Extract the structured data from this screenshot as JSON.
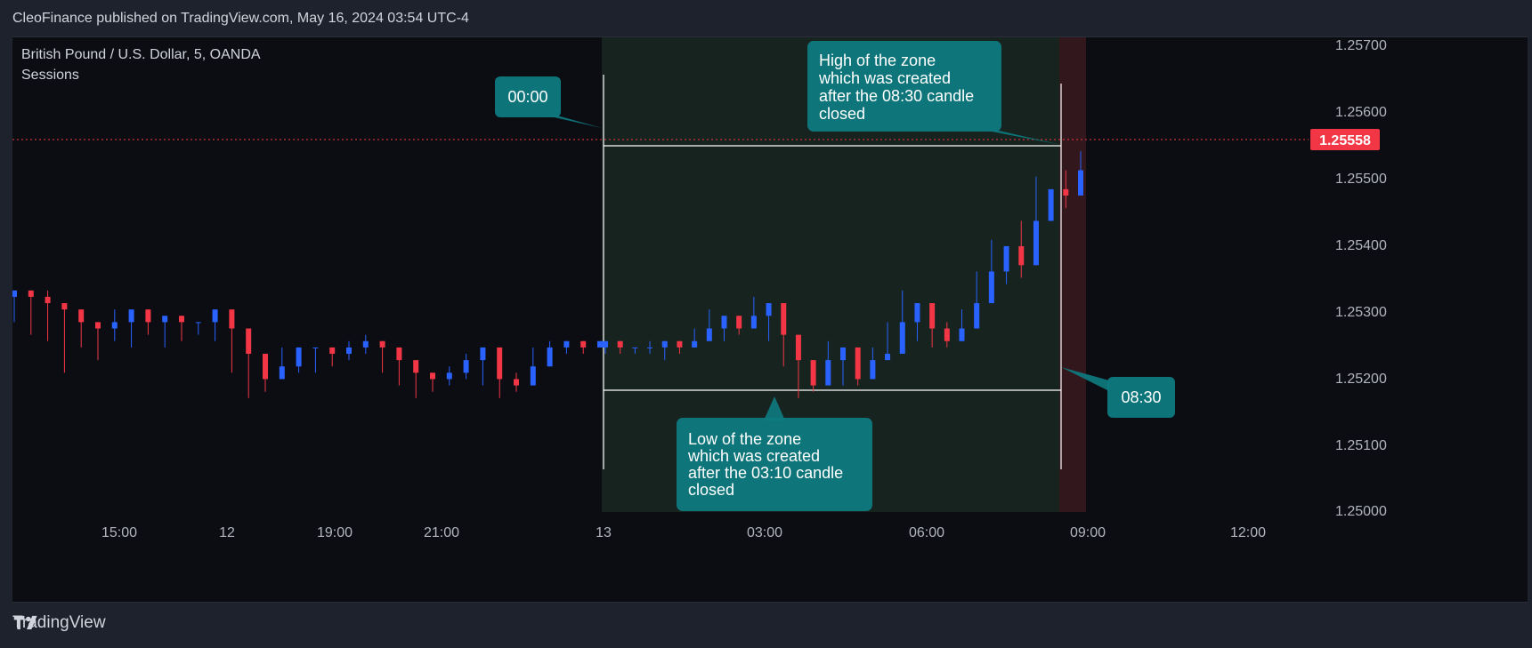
{
  "header": {
    "attribution": "CleoFinance published on TradingView.com, May 16, 2024 03:54 UTC-4"
  },
  "legend": {
    "symbol": "British Pound / U.S. Dollar, 5, OANDA",
    "indicator": "Sessions"
  },
  "footer": {
    "brand": "TradingView"
  },
  "colors": {
    "background": "#0b0d12",
    "bull": "#2962ff",
    "bear": "#f23645",
    "session_fill": "#1b2d24",
    "premarket_fill": "#3a1a1e",
    "callout": "#0e7a7f",
    "price_tag": "#f23645",
    "zone_lines": "#ffffff"
  },
  "chart_data": {
    "type": "candlestick",
    "symbol": "British Pound / U.S. Dollar",
    "interval": "5",
    "source": "OANDA",
    "ylim": [
      1.25,
      1.2575
    ],
    "y_ticks": [
      "1.25000",
      "1.25100",
      "1.25200",
      "1.25300",
      "1.25400",
      "1.25500",
      "1.25600",
      "1.25700"
    ],
    "x_ticks": [
      "15:00",
      "12",
      "19:00",
      "21:00",
      "13",
      "03:00",
      "06:00",
      "09:00",
      "12:00"
    ],
    "last_price": "1.25558",
    "zone": {
      "high": 1.25546,
      "low": 1.2518,
      "start_label": "00:00",
      "end_label": "08:30"
    },
    "series": [
      {
        "segment": 1,
        "points": [
          [
            1.2535,
            1.2535,
            1.253
          ],
          [
            1.2534,
            1.2534,
            1.2528
          ],
          [
            1.2533,
            1.2535,
            1.2527
          ],
          [
            1.2532,
            1.253,
            1.2522
          ],
          [
            1.253,
            1.2531,
            1.2526
          ],
          [
            1.2529,
            1.2528,
            1.2524
          ],
          [
            1.253,
            1.2532,
            1.2527
          ],
          [
            1.2532,
            1.2531,
            1.2526
          ],
          [
            1.253,
            1.2532,
            1.2528
          ],
          [
            1.2531,
            1.253,
            1.2526
          ],
          [
            1.253,
            1.2531,
            1.2527
          ],
          [
            1.253,
            1.253,
            1.2528
          ],
          [
            1.2532,
            1.2531,
            1.2527
          ],
          [
            1.2529,
            1.2528,
            1.2522
          ],
          [
            1.2525,
            1.2527,
            1.2518
          ],
          [
            1.2521,
            1.2523,
            1.2519
          ],
          [
            1.2523,
            1.2526,
            1.2522
          ],
          [
            1.2526,
            1.2525,
            1.2522
          ],
          [
            1.2526,
            1.2525,
            1.2522
          ],
          [
            1.2525,
            1.2526,
            1.2523
          ],
          [
            1.2526,
            1.2527,
            1.2524
          ],
          [
            1.2527,
            1.2528,
            1.2525
          ],
          [
            1.2526,
            1.2525,
            1.2522
          ],
          [
            1.2524,
            1.2524,
            1.252
          ],
          [
            1.2522,
            1.2521,
            1.2518
          ],
          [
            1.2521,
            1.2522,
            1.2519
          ],
          [
            1.2522,
            1.2523,
            1.252
          ],
          [
            1.2524,
            1.2525,
            1.2521
          ],
          [
            1.2526,
            1.2524,
            1.252
          ],
          [
            1.2521,
            1.252,
            1.2518
          ],
          [
            1.252,
            1.2522,
            1.2519
          ],
          [
            1.2523,
            1.2526,
            1.2522
          ],
          [
            1.2526,
            1.2527,
            1.2525
          ],
          [
            1.2527,
            1.2526,
            1.2525
          ],
          [
            1.2526,
            1.2527,
            1.2525
          ],
          [
            1.2527,
            1.2527,
            1.2526
          ]
        ]
      },
      {
        "segment": 2,
        "points": [
          [
            1.2527,
            1.2527,
            1.2525
          ],
          [
            1.2526,
            1.2527,
            1.2525
          ],
          [
            1.2526,
            1.2526,
            1.2525
          ],
          [
            1.2526,
            1.2527,
            1.2525
          ],
          [
            1.2527,
            1.2526,
            1.2524
          ],
          [
            1.2526,
            1.2526,
            1.2525
          ],
          [
            1.2527,
            1.2529,
            1.2526
          ],
          [
            1.2529,
            1.2532,
            1.2528
          ],
          [
            1.2531,
            1.253,
            1.2527
          ],
          [
            1.2529,
            1.2531,
            1.2528
          ],
          [
            1.2531,
            1.2534,
            1.253
          ],
          [
            1.2533,
            1.2532,
            1.2527
          ],
          [
            1.2528,
            1.2527,
            1.2523
          ],
          [
            1.2524,
            1.2525,
            1.2518
          ],
          [
            1.252,
            1.2524,
            1.2519
          ],
          [
            1.2524,
            1.2527,
            1.2523
          ],
          [
            1.2526,
            1.2525,
            1.252
          ],
          [
            1.2521,
            1.2524,
            1.252
          ],
          [
            1.2524,
            1.2526,
            1.2523
          ],
          [
            1.2525,
            1.253,
            1.2525
          ],
          [
            1.253,
            1.2535,
            1.2529
          ],
          [
            1.2533,
            1.2531,
            1.2527
          ],
          [
            1.2529,
            1.2528,
            1.2526
          ],
          [
            1.2527,
            1.253,
            1.2526
          ],
          [
            1.2529,
            1.2532,
            1.2528
          ],
          [
            1.2533,
            1.2538,
            1.2532
          ],
          [
            1.2538,
            1.2543,
            1.2537
          ],
          [
            1.2542,
            1.2541,
            1.2536
          ],
          [
            1.2539,
            1.2546,
            1.2537
          ],
          [
            1.2546,
            1.2553,
            1.2545
          ],
          [
            1.2551,
            1.255,
            1.2546
          ],
          [
            1.255,
            1.2554,
            1.2548
          ],
          [
            1.2554,
            1.2557,
            1.2552
          ]
        ]
      }
    ]
  },
  "annotations": {
    "start_callout": "00:00",
    "end_callout": "08:30",
    "high_note": [
      "High of the zone",
      "which was created",
      "after the 08:30 candle",
      "closed"
    ],
    "low_note": [
      "Low of the zone",
      "which was created",
      "after the 03:10 candle",
      "closed"
    ]
  }
}
